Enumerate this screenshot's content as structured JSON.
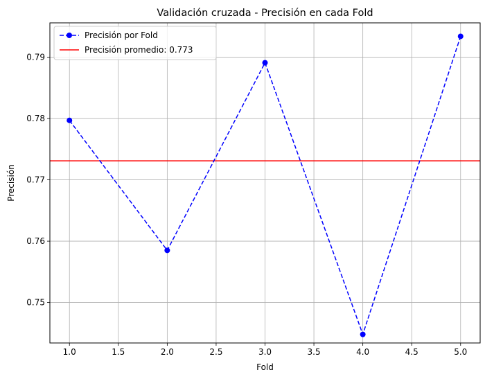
{
  "chart_data": {
    "type": "line",
    "title": "Validación cruzada - Precisión en cada Fold",
    "xlabel": "Fold",
    "ylabel": "Precisión",
    "xlim": [
      0.8,
      5.2
    ],
    "ylim": [
      0.7434,
      0.7956
    ],
    "xticks": [
      1.0,
      1.5,
      2.0,
      2.5,
      3.0,
      3.5,
      4.0,
      4.5,
      5.0
    ],
    "xtick_labels": [
      "1.0",
      "1.5",
      "2.0",
      "2.5",
      "3.0",
      "3.5",
      "4.0",
      "4.5",
      "5.0"
    ],
    "yticks": [
      0.75,
      0.76,
      0.77,
      0.78,
      0.79
    ],
    "ytick_labels": [
      "0.75",
      "0.76",
      "0.77",
      "0.78",
      "0.79"
    ],
    "grid": true,
    "legend_position": "upper-left",
    "series": [
      {
        "name": "Precisión por Fold",
        "style": "dashed line with circle markers",
        "color": "#0000ff",
        "x": [
          1,
          2,
          3,
          4,
          5
        ],
        "y": [
          0.7797,
          0.7585,
          0.7891,
          0.7448,
          0.7934
        ]
      }
    ],
    "reference_lines": [
      {
        "name": "Precisión promedio: 0.773",
        "orientation": "horizontal",
        "color": "#ff0000",
        "y": 0.7731
      }
    ]
  }
}
